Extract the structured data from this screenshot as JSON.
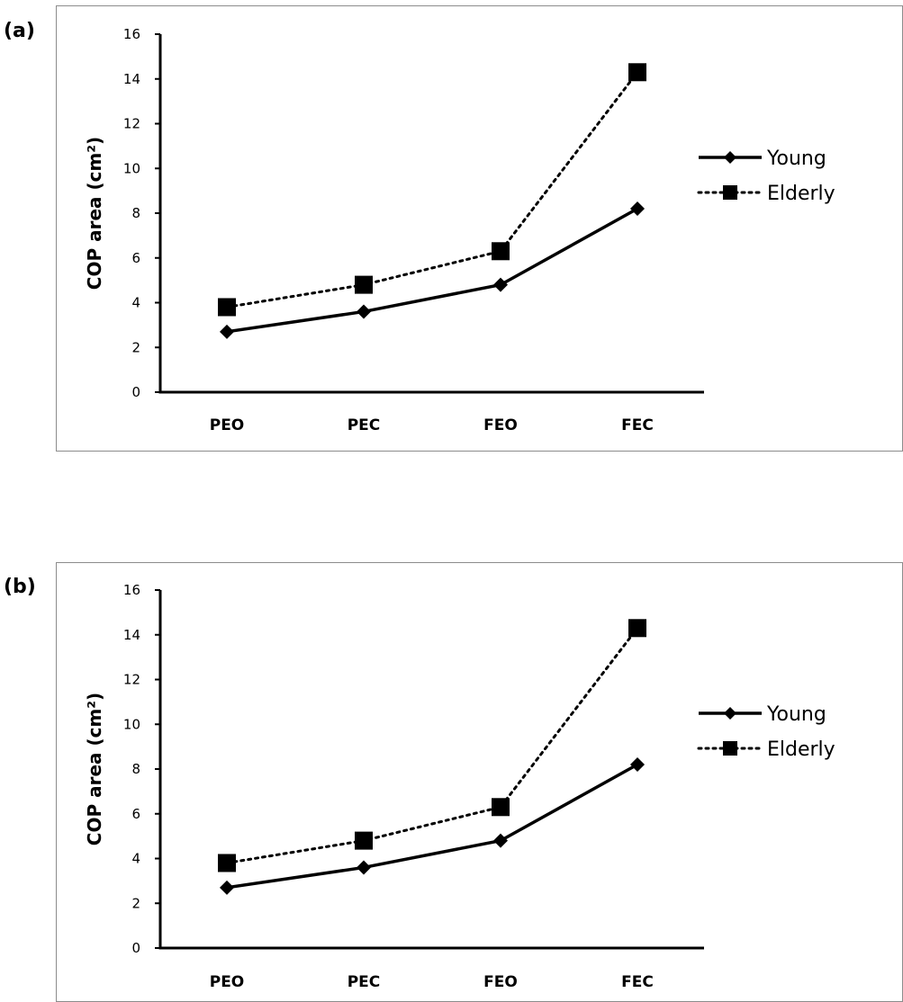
{
  "chart_data": [
    {
      "panel_label": "(a)",
      "type": "line",
      "categories": [
        "PEO",
        "PEC",
        "FEO",
        "FEC"
      ],
      "series": [
        {
          "name": "Young",
          "values": [
            2.7,
            3.6,
            4.8,
            8.2
          ],
          "marker": "diamond",
          "line": "solid"
        },
        {
          "name": "Elderly",
          "values": [
            3.8,
            4.8,
            6.3,
            14.3
          ],
          "marker": "square",
          "line": "dotted"
        }
      ],
      "ylabel": "COP area (cm²)",
      "yticks": [
        "0",
        "2",
        "4",
        "6",
        "8",
        "10",
        "12",
        "14",
        "16"
      ],
      "ylim": [
        0,
        16
      ],
      "grid": false,
      "legend": "right"
    },
    {
      "panel_label": "(b)",
      "type": "line",
      "categories": [
        "PEO",
        "PEC",
        "FEO",
        "FEC"
      ],
      "series": [
        {
          "name": "Young",
          "values": [
            2.7,
            3.6,
            4.8,
            8.2
          ],
          "marker": "diamond",
          "line": "solid"
        },
        {
          "name": "Elderly",
          "values": [
            3.8,
            4.8,
            6.3,
            14.3
          ],
          "marker": "square",
          "line": "dotted"
        }
      ],
      "ylabel": "COP area (cm²)",
      "yticks": [
        "0",
        "2",
        "4",
        "6",
        "8",
        "10",
        "12",
        "14",
        "16"
      ],
      "ylim": [
        0,
        16
      ],
      "grid": false,
      "legend": "right"
    }
  ]
}
